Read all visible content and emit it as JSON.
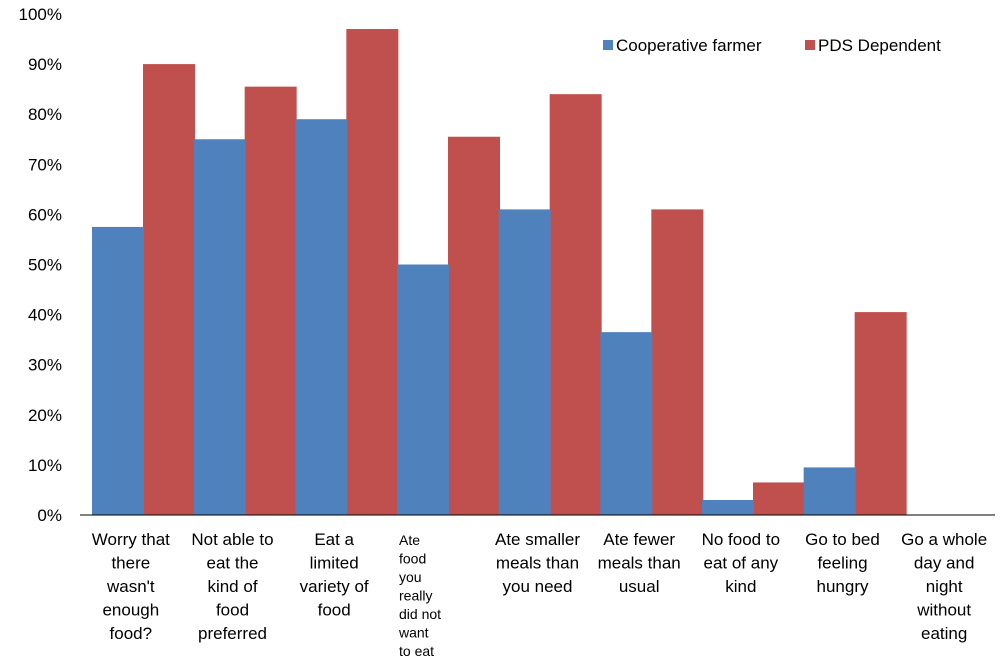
{
  "chart_data": {
    "type": "bar",
    "title": "",
    "xlabel": "",
    "ylabel": "",
    "ylim": [
      0,
      100
    ],
    "y_ticks": [
      "0%",
      "10%",
      "20%",
      "30%",
      "40%",
      "50%",
      "60%",
      "70%",
      "80%",
      "90%",
      "100%"
    ],
    "grid": false,
    "legend_position": "top-right",
    "categories": [
      "Worry that there wasn't enough food?",
      "Not able to eat the kind of food preferred",
      "Eat a limited variety of food",
      "Ate food you really did not want to eat",
      "Ate smaller meals than you need",
      "Ate fewer meals than usual",
      "No food to eat of any kind",
      "Go to bed feeling hungry",
      "Go a whole day and night without eating"
    ],
    "category_lines": [
      [
        "Worry that",
        "there",
        "wasn't",
        "enough",
        "food?"
      ],
      [
        "Not able to",
        "eat the",
        "kind of",
        "food",
        "preferred"
      ],
      [
        "Eat a",
        "limited",
        "variety of",
        "food"
      ],
      [
        "Ate",
        "food",
        "you",
        "really",
        "did not",
        "want",
        "to eat"
      ],
      [
        "Ate smaller",
        "meals than",
        "you need"
      ],
      [
        "Ate fewer",
        "meals than",
        "usual"
      ],
      [
        "No food to",
        "eat of any",
        "kind"
      ],
      [
        "Go to bed",
        "feeling",
        "hungry"
      ],
      [
        "Go a whole",
        "day and",
        "night",
        "without",
        "eating"
      ]
    ],
    "series": [
      {
        "name": "Cooperative farmer",
        "color": "#4F81BD",
        "values": [
          57.5,
          75,
          79,
          50,
          61,
          36.5,
          3,
          9.5,
          0
        ]
      },
      {
        "name": "PDS Dependent",
        "color": "#C0504D",
        "values": [
          90,
          85.5,
          97,
          75.5,
          84,
          61,
          6.5,
          40.5,
          0
        ]
      }
    ]
  }
}
